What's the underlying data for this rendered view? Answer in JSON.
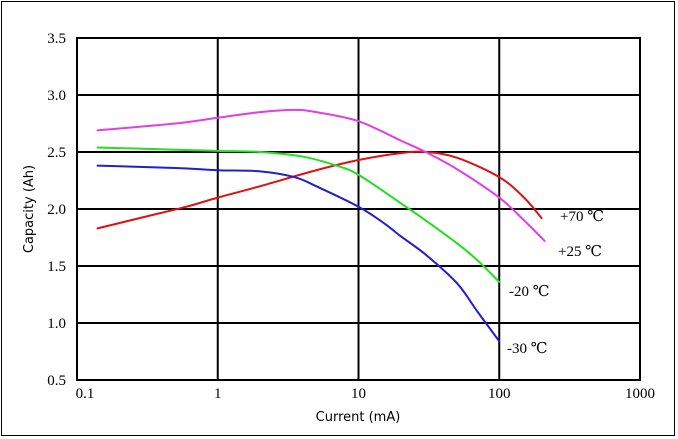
{
  "chart_data": {
    "type": "line",
    "title": "",
    "xlabel": "Current (mA)",
    "ylabel": "Capacity (Ah)",
    "x_scale": "log",
    "xlim": [
      0.1,
      1000
    ],
    "ylim": [
      0.5,
      3.5
    ],
    "x_ticks": [
      "0.1",
      "1",
      "10",
      "100",
      "1000"
    ],
    "y_ticks": [
      "0.5",
      "1.0",
      "1.5",
      "2.0",
      "2.5",
      "3.0",
      "3.5"
    ],
    "grid": true,
    "series": [
      {
        "name": "+70 ℃",
        "color": "#e01010",
        "x": [
          0.14,
          0.3,
          0.6,
          1,
          2,
          5,
          10,
          20,
          30,
          50,
          100,
          150,
          200
        ],
        "y": [
          1.83,
          1.93,
          2.02,
          2.1,
          2.2,
          2.34,
          2.43,
          2.49,
          2.5,
          2.45,
          2.28,
          2.1,
          1.92
        ]
      },
      {
        "name": "+25 ℃",
        "color": "#e040e0",
        "x": [
          0.14,
          0.5,
          1,
          2,
          3.5,
          5,
          10,
          20,
          30,
          50,
          100,
          150,
          210
        ],
        "y": [
          2.69,
          2.75,
          2.8,
          2.85,
          2.87,
          2.85,
          2.77,
          2.6,
          2.5,
          2.35,
          2.1,
          1.9,
          1.72
        ]
      },
      {
        "name": "-20 ℃",
        "color": "#20e020",
        "x": [
          0.14,
          0.5,
          1,
          2,
          4,
          7,
          10,
          20,
          30,
          50,
          70,
          100
        ],
        "y": [
          2.54,
          2.52,
          2.51,
          2.5,
          2.46,
          2.38,
          2.3,
          2.05,
          1.9,
          1.7,
          1.55,
          1.36
        ]
      },
      {
        "name": "-30 ℃",
        "color": "#2020cc",
        "x": [
          0.14,
          0.5,
          1,
          2,
          3.5,
          5,
          10,
          15,
          20,
          30,
          50,
          70,
          100
        ],
        "y": [
          2.38,
          2.36,
          2.34,
          2.33,
          2.28,
          2.2,
          2.02,
          1.88,
          1.76,
          1.6,
          1.35,
          1.1,
          0.84
        ]
      }
    ]
  }
}
